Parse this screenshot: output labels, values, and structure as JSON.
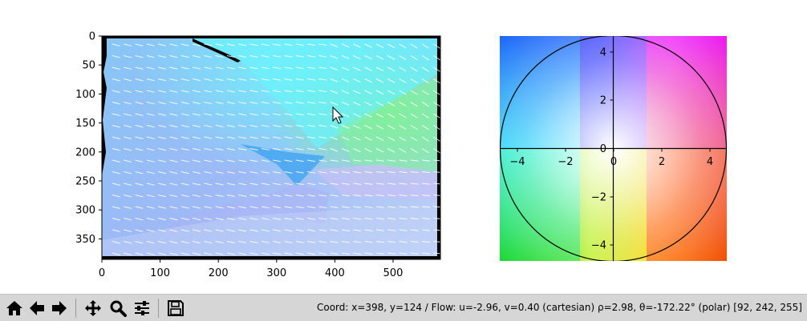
{
  "flow_axes": {
    "xticks": [
      "0",
      "100",
      "200",
      "300",
      "400",
      "500"
    ],
    "yticks": [
      "0",
      "50",
      "100",
      "150",
      "200",
      "250",
      "300",
      "350"
    ]
  },
  "wheel_axes": {
    "xticks": [
      "−4",
      "−2",
      "0",
      "2",
      "4"
    ],
    "yticks": [
      "4",
      "2",
      "0",
      "−2",
      "−4"
    ]
  },
  "toolbar": {
    "buttons": [
      {
        "name": "home-button",
        "icon": "home-icon"
      },
      {
        "name": "back-button",
        "icon": "arrow-left-icon"
      },
      {
        "name": "forward-button",
        "icon": "arrow-right-icon"
      },
      {
        "name": "pan-button",
        "icon": "move-icon"
      },
      {
        "name": "zoom-button",
        "icon": "magnifier-icon"
      },
      {
        "name": "configure-subplots-button",
        "icon": "sliders-icon"
      },
      {
        "name": "save-button",
        "icon": "floppy-icon"
      }
    ],
    "status": "Coord: x=398, y=124 / Flow: u=-2.96, v=0.40 (cartesian) ρ=2.98, θ=-172.22° (polar) [92, 242, 255]"
  }
}
